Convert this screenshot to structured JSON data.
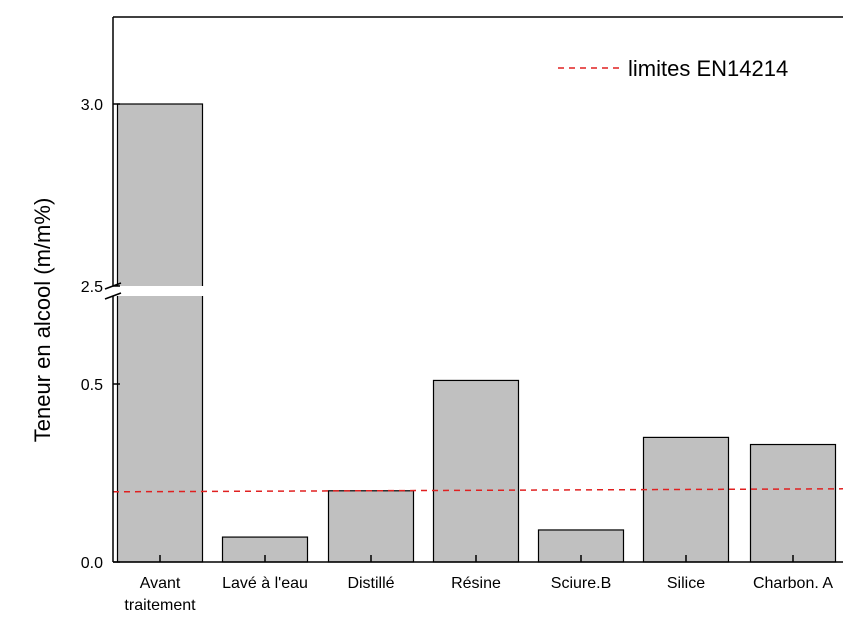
{
  "chart_data": {
    "type": "bar",
    "title": "",
    "xlabel": "",
    "ylabel": "Teneur en alcool (m/m%)",
    "categories": [
      "Avant traitement",
      "Lavé à l'eau",
      "Distillé",
      "Résine",
      "Sciure.B",
      "Silice",
      "Charbon. A"
    ],
    "values": [
      3.0,
      0.07,
      0.2,
      0.51,
      0.09,
      0.35,
      0.33
    ],
    "y_axis_break": [
      0.5,
      2.5
    ],
    "ylim": [
      0.0,
      3.2
    ],
    "yticks": [
      "0.0",
      "0.5",
      "2.5",
      "3.0"
    ],
    "bar_color": "#c0c0c0",
    "grid": false,
    "reference_line": {
      "label": "limites EN14214",
      "value": 0.2,
      "color": "#e02020",
      "style": "dashed"
    },
    "legend_placement": "top-right"
  }
}
